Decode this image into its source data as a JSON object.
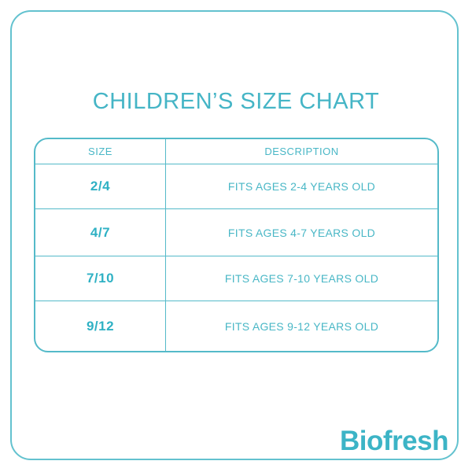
{
  "page": {
    "title": "CHILDREN’S SIZE CHART"
  },
  "brand": {
    "logo_text": "Biofresh"
  },
  "colors": {
    "accent_teal": "#45b5c6",
    "border_teal": "#54bac9",
    "background": "#ffffff"
  },
  "table": {
    "headers": [
      "SIZE",
      "DESCRIPTION"
    ],
    "rows": [
      {
        "size": "2/4",
        "description": "FITS AGES 2-4 YEARS OLD"
      },
      {
        "size": "4/7",
        "description": "FITS AGES 4-7 YEARS OLD"
      },
      {
        "size": "7/10",
        "description": "FITS AGES 7-10 YEARS OLD"
      },
      {
        "size": "9/12",
        "description": "FITS AGES 9-12 YEARS OLD"
      }
    ]
  },
  "chart_data": {
    "type": "table",
    "title": "CHILDREN’S SIZE CHART",
    "columns": [
      "SIZE",
      "DESCRIPTION"
    ],
    "rows": [
      [
        "2/4",
        "FITS AGES 2-4 YEARS OLD"
      ],
      [
        "4/7",
        "FITS AGES 4-7 YEARS OLD"
      ],
      [
        "7/10",
        "FITS AGES 7-10 YEARS OLD"
      ],
      [
        "9/12",
        "FITS AGES 9-12 YEARS OLD"
      ]
    ]
  }
}
